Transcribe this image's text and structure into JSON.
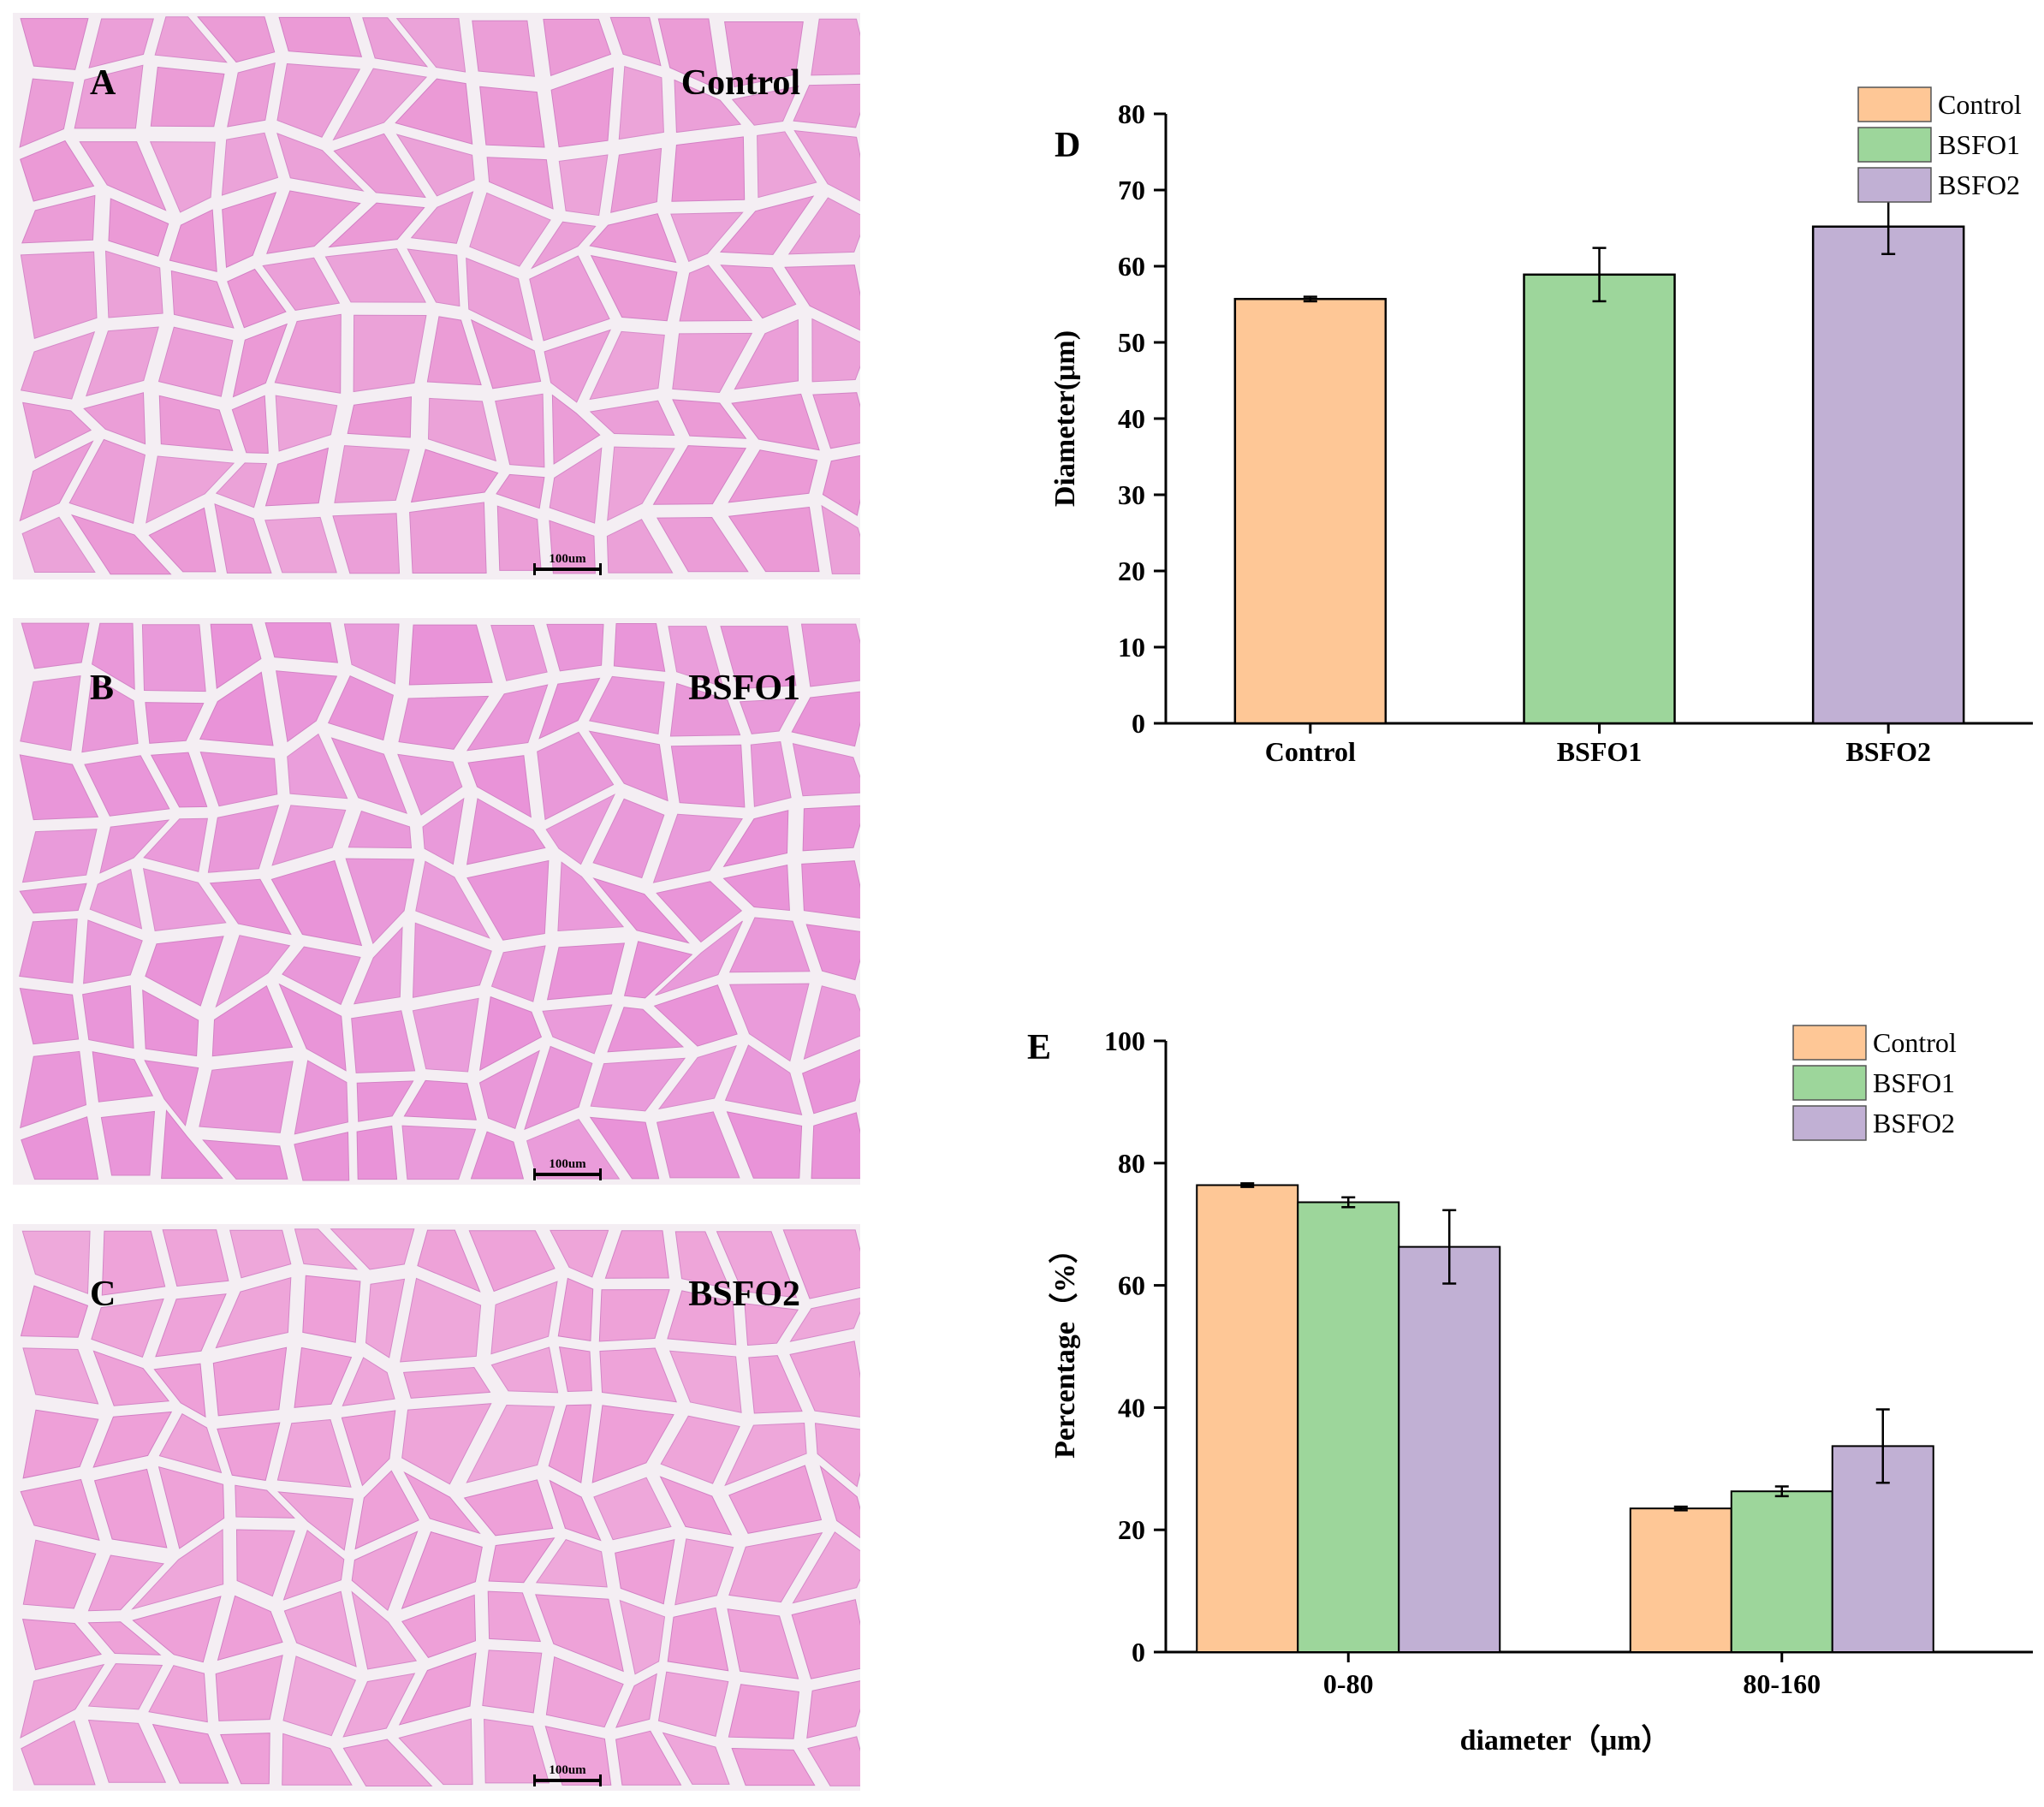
{
  "panels": [
    {
      "letter": "A",
      "label": "Control",
      "scale": "100um",
      "tint": "#eb9ad6"
    },
    {
      "letter": "B",
      "label": "BSFO1",
      "scale": "100um",
      "tint": "#e993d8"
    },
    {
      "letter": "C",
      "label": "BSFO2",
      "scale": "100um",
      "tint": "#eea0d8"
    }
  ],
  "colors": {
    "control": "#fec796",
    "bsfo1": "#9dd69b",
    "bsfo2": "#c1b0d4",
    "tissue_gap": "#f4eef3"
  },
  "chart_data": [
    {
      "id": "D",
      "type": "bar",
      "panel_letter": "D",
      "categories": [
        "Control",
        "BSFO1",
        "BSFO2"
      ],
      "values": [
        55.7,
        58.9,
        65.2
      ],
      "errors": [
        0.3,
        3.5,
        3.6
      ],
      "legend": [
        "Control",
        "BSFO1",
        "BSFO2"
      ],
      "legend_position": "top-right",
      "xlabel": "",
      "ylabel": "Diameter(μm)",
      "ylim": [
        0,
        80
      ],
      "yticks": [
        0,
        10,
        20,
        30,
        40,
        50,
        60,
        70,
        80
      ]
    },
    {
      "id": "E",
      "type": "bar",
      "panel_letter": "E",
      "categories": [
        "0-80",
        "80-160"
      ],
      "series": [
        {
          "name": "Control",
          "values": [
            76.4,
            23.5
          ],
          "errors": [
            0.3,
            0.3
          ]
        },
        {
          "name": "BSFO1",
          "values": [
            73.6,
            26.3
          ],
          "errors": [
            0.8,
            0.8
          ]
        },
        {
          "name": "BSFO2",
          "values": [
            66.3,
            33.7
          ],
          "errors": [
            6.0,
            6.0
          ]
        }
      ],
      "legend_position": "top-right",
      "xlabel": "diameter（μm）",
      "ylabel": "Percentage（%）",
      "ylim": [
        0,
        100
      ],
      "yticks": [
        0,
        20,
        40,
        60,
        80,
        100
      ]
    }
  ]
}
